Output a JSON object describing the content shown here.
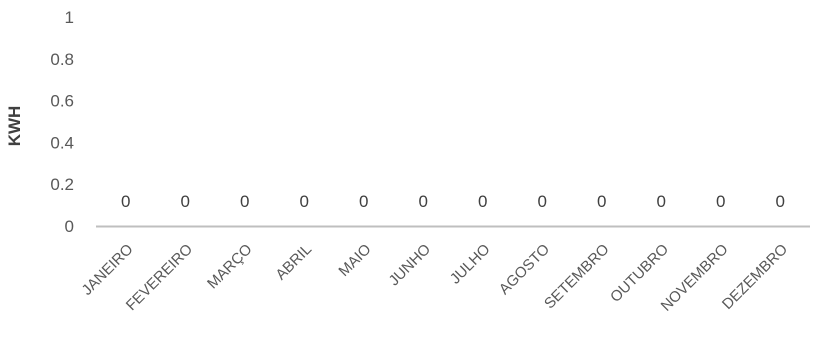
{
  "chart_data": {
    "type": "bar",
    "title": "",
    "xlabel": "",
    "ylabel": "KWH",
    "ylim": [
      0,
      1
    ],
    "yticks": [
      "0",
      "0.2",
      "0.4",
      "0.6",
      "0.8",
      "1"
    ],
    "categories": [
      "JANEIRO",
      "FEVEREIRO",
      "MARÇO",
      "ABRIL",
      "MAIO",
      "JUNHO",
      "JULHO",
      "AGOSTO",
      "SETEMBRO",
      "OUTUBRO",
      "NOVEMBRO",
      "DEZEMBRO"
    ],
    "values": [
      0,
      0,
      0,
      0,
      0,
      0,
      0,
      0,
      0,
      0,
      0,
      0
    ],
    "data_labels": [
      "0",
      "0",
      "0",
      "0",
      "0",
      "0",
      "0",
      "0",
      "0",
      "0",
      "0",
      "0"
    ],
    "grid": false,
    "legend": "none"
  },
  "colors": {
    "axis_line": "#bfbfbf",
    "bar": "#4472c4",
    "tick_text": "#595959",
    "label_text": "#404040"
  }
}
